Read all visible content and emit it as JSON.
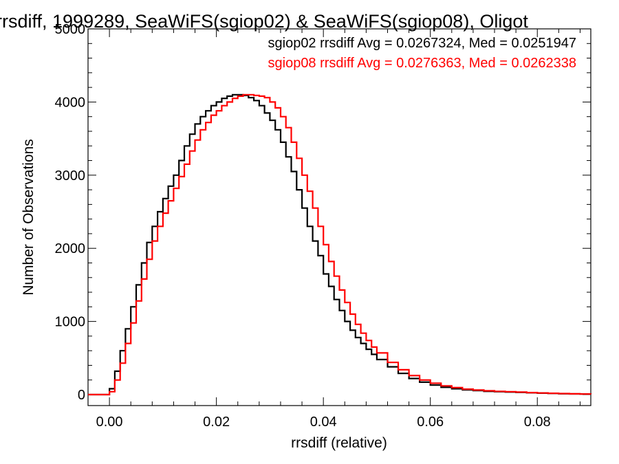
{
  "chart_data": {
    "type": "line",
    "title": "rrsdiff, 1999289, SeaWiFS(sgiop02) & SeaWiFS(sgiop08), Oligot",
    "xlabel": "rrsdiff (relative)",
    "ylabel": "Number of Observations",
    "xlim": [
      -0.004,
      0.09
    ],
    "ylim": [
      -150,
      5000
    ],
    "x_ticks": [
      "0.00",
      "0.02",
      "0.04",
      "0.06",
      "0.08"
    ],
    "x_tick_values": [
      0.0,
      0.02,
      0.04,
      0.06,
      0.08
    ],
    "y_ticks": [
      "0",
      "1000",
      "2000",
      "3000",
      "4000",
      "5000"
    ],
    "y_tick_values": [
      0,
      1000,
      2000,
      3000,
      4000,
      5000
    ],
    "grid": false,
    "series": [
      {
        "color": "#000000",
        "label": "sgiop02 rrsdiff Avg = 0.0267324, Med = 0.0251947",
        "x": [
          -0.004,
          -0.001,
          0.0,
          0.001,
          0.002,
          0.003,
          0.004,
          0.005,
          0.006,
          0.007,
          0.008,
          0.009,
          0.01,
          0.011,
          0.012,
          0.013,
          0.014,
          0.015,
          0.016,
          0.017,
          0.018,
          0.019,
          0.02,
          0.021,
          0.022,
          0.023,
          0.024,
          0.025,
          0.026,
          0.027,
          0.028,
          0.029,
          0.03,
          0.031,
          0.032,
          0.033,
          0.034,
          0.035,
          0.036,
          0.037,
          0.038,
          0.039,
          0.04,
          0.041,
          0.042,
          0.043,
          0.044,
          0.045,
          0.046,
          0.047,
          0.048,
          0.049,
          0.05,
          0.052,
          0.054,
          0.056,
          0.058,
          0.06,
          0.062,
          0.064,
          0.066,
          0.068,
          0.07,
          0.072,
          0.074,
          0.076,
          0.078,
          0.08,
          0.082,
          0.084,
          0.086,
          0.088,
          0.09
        ],
        "y": [
          0,
          0,
          80,
          320,
          600,
          900,
          1200,
          1500,
          1800,
          2080,
          2300,
          2500,
          2680,
          2850,
          3000,
          3200,
          3400,
          3560,
          3700,
          3800,
          3880,
          3950,
          4000,
          4050,
          4080,
          4100,
          4100,
          4090,
          4060,
          4020,
          3950,
          3850,
          3750,
          3620,
          3450,
          3250,
          3050,
          2800,
          2550,
          2300,
          2100,
          1900,
          1650,
          1480,
          1300,
          1150,
          1000,
          880,
          780,
          700,
          620,
          550,
          480,
          380,
          290,
          220,
          170,
          130,
          100,
          80,
          65,
          55,
          45,
          40,
          35,
          30,
          25,
          20,
          16,
          12,
          10,
          8,
          6
        ]
      },
      {
        "color": "#ff0000",
        "label": "sgiop08 rrsdiff Avg = 0.0276363, Med = 0.0262338",
        "x": [
          -0.004,
          -0.001,
          0.0,
          0.001,
          0.002,
          0.003,
          0.004,
          0.005,
          0.006,
          0.007,
          0.008,
          0.009,
          0.01,
          0.011,
          0.012,
          0.013,
          0.014,
          0.015,
          0.016,
          0.017,
          0.018,
          0.019,
          0.02,
          0.021,
          0.022,
          0.023,
          0.024,
          0.025,
          0.026,
          0.027,
          0.028,
          0.029,
          0.03,
          0.031,
          0.032,
          0.033,
          0.034,
          0.035,
          0.036,
          0.037,
          0.038,
          0.039,
          0.04,
          0.041,
          0.042,
          0.043,
          0.044,
          0.045,
          0.046,
          0.047,
          0.048,
          0.049,
          0.05,
          0.052,
          0.054,
          0.056,
          0.058,
          0.06,
          0.062,
          0.064,
          0.066,
          0.068,
          0.07,
          0.072,
          0.074,
          0.076,
          0.078,
          0.08,
          0.082,
          0.084,
          0.086,
          0.088,
          0.09
        ],
        "y": [
          0,
          0,
          40,
          200,
          430,
          700,
          980,
          1280,
          1580,
          1850,
          2100,
          2300,
          2480,
          2650,
          2820,
          2980,
          3150,
          3330,
          3480,
          3620,
          3720,
          3820,
          3880,
          3950,
          4000,
          4050,
          4080,
          4100,
          4100,
          4090,
          4080,
          4060,
          4000,
          3920,
          3800,
          3650,
          3450,
          3230,
          3000,
          2780,
          2550,
          2300,
          2050,
          1820,
          1620,
          1430,
          1260,
          1100,
          960,
          840,
          740,
          650,
          570,
          440,
          340,
          260,
          200,
          155,
          120,
          95,
          75,
          62,
          52,
          45,
          40,
          34,
          28,
          22,
          18,
          14,
          11,
          8,
          6
        ]
      }
    ],
    "legend_placement": "top-right"
  }
}
